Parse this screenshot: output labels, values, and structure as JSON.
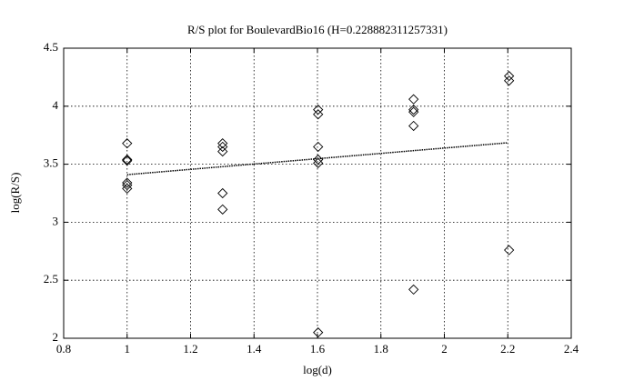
{
  "chart_data": {
    "type": "scatter",
    "title": "R/S plot for BoulevardBio16 (H=0.228882311257331)",
    "xlabel": "log(d)",
    "ylabel": "log(R/S)",
    "x": [
      1,
      1,
      1,
      1,
      1,
      1,
      1.301,
      1.301,
      1.301,
      1.301,
      1.301,
      1.602,
      1.602,
      1.602,
      1.602,
      1.602,
      1.602,
      1.903,
      1.903,
      1.903,
      1.903,
      1.903,
      2.204,
      2.204,
      2.204
    ],
    "values": [
      3.68,
      3.54,
      3.53,
      3.34,
      3.32,
      3.29,
      3.68,
      3.65,
      3.61,
      3.25,
      3.11,
      3.97,
      3.93,
      3.65,
      3.54,
      3.51,
      2.05,
      4.06,
      3.97,
      3.95,
      3.83,
      2.42,
      4.26,
      4.22,
      2.76
    ],
    "color": "#000000",
    "fit": {
      "x": [
        1,
        2.2
      ],
      "values": [
        3.41,
        3.685
      ]
    },
    "xlim": [
      0.8,
      2.4
    ],
    "xticks": [
      0.8,
      1,
      1.2,
      1.4,
      1.6,
      1.8,
      2,
      2.2,
      2.4
    ],
    "ylim": [
      2,
      4.5
    ],
    "yticks": [
      2,
      2.5,
      3,
      3.5,
      4,
      4.5
    ],
    "grid": true
  }
}
